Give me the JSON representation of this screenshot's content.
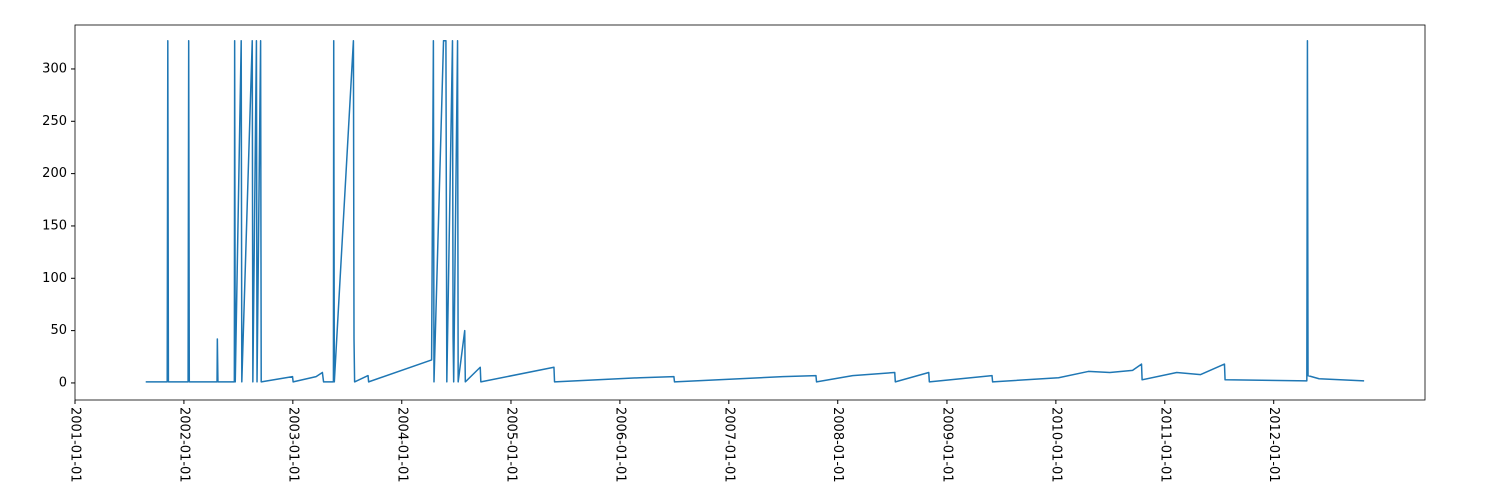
{
  "chart_data": {
    "type": "line",
    "color": "#1f77b4",
    "x": [
      "2001-08-26",
      "2001-11-06",
      "2001-11-08",
      "2001-11-10",
      "2002-01-15",
      "2002-01-17",
      "2002-01-19",
      "2002-04-22",
      "2002-04-23",
      "2002-04-25",
      "2002-06-19",
      "2002-06-20",
      "2002-06-22",
      "2002-07-12",
      "2002-07-14",
      "2002-08-18",
      "2002-08-20",
      "2002-09-01",
      "2002-09-03",
      "2002-09-15",
      "2002-09-17",
      "2002-12-31",
      "2003-01-02",
      "2003-03-20",
      "2003-04-10",
      "2003-04-14",
      "2003-05-17",
      "2003-05-18",
      "2003-05-20",
      "2003-07-23",
      "2003-07-25",
      "2003-07-27",
      "2003-09-10",
      "2003-09-12",
      "2004-04-10",
      "2004-04-16",
      "2004-04-18",
      "2004-05-20",
      "2004-05-28",
      "2004-05-31",
      "2004-06-19",
      "2004-06-21",
      "2004-06-23",
      "2004-07-06",
      "2004-07-08",
      "2004-07-30",
      "2004-08-01",
      "2004-09-20",
      "2004-09-22",
      "2005-05-25",
      "2005-05-27",
      "2006-03-10",
      "2006-07-01",
      "2006-07-03",
      "2007-07-01",
      "2007-10-20",
      "2007-10-22",
      "2008-02-20",
      "2008-07-10",
      "2008-07-12",
      "2008-11-01",
      "2008-11-03",
      "2009-06-01",
      "2009-06-03",
      "2010-01-10",
      "2010-04-20",
      "2010-07-01",
      "2010-09-15",
      "2010-10-15",
      "2010-10-17",
      "2011-02-10",
      "2011-05-01",
      "2011-07-20",
      "2011-07-22",
      "2012-04-21",
      "2012-04-23",
      "2012-04-25",
      "2012-06-01",
      "2012-10-30"
    ],
    "values": [
      1,
      1,
      327,
      1,
      1,
      327,
      1,
      1,
      42,
      1,
      1,
      327,
      1,
      327,
      1,
      327,
      1,
      327,
      1,
      327,
      1,
      6,
      1,
      6,
      10,
      1,
      1,
      327,
      1,
      327,
      42,
      1,
      7,
      1,
      22,
      327,
      1,
      327,
      327,
      1,
      327,
      44,
      1,
      327,
      1,
      50,
      1,
      15,
      1,
      15,
      1,
      5,
      6,
      1,
      6,
      7,
      1,
      7,
      10,
      1,
      10,
      1,
      7,
      1,
      5,
      11,
      10,
      12,
      18,
      3,
      10,
      8,
      18,
      3,
      2,
      327,
      7,
      4,
      2
    ],
    "xlim": [
      "2001-01-01",
      "2013-05-22"
    ],
    "xticks": [
      "2001-01-01",
      "2002-01-01",
      "2003-01-01",
      "2004-01-01",
      "2005-01-01",
      "2006-01-01",
      "2007-01-01",
      "2008-01-01",
      "2009-01-01",
      "2010-01-01",
      "2011-01-01",
      "2012-01-01"
    ],
    "ylim": [
      -16.3,
      342
    ],
    "yticks": [
      0,
      50,
      100,
      150,
      200,
      250,
      300
    ]
  }
}
